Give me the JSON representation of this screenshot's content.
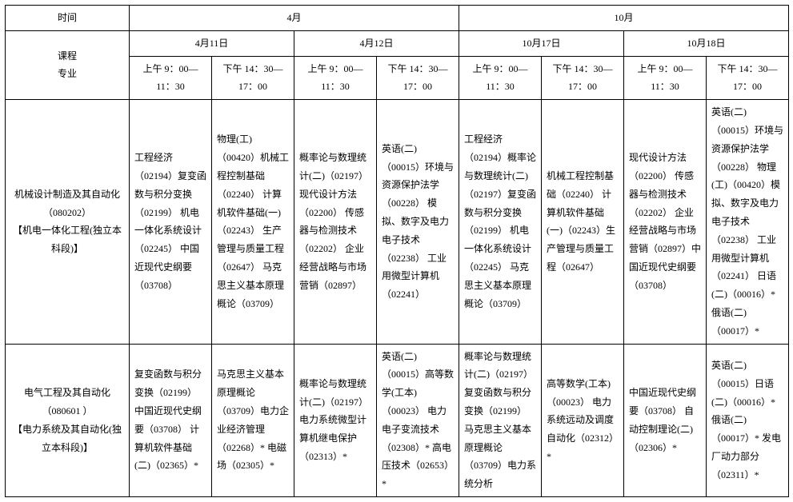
{
  "header": {
    "time_label": "时间",
    "course_major_label": "课程\n专业",
    "month_april": "4月",
    "month_october": "10月",
    "apr_11": "4月11日",
    "apr_12": "4月12日",
    "oct_17": "10月17日",
    "oct_18": "10月18日",
    "am": "上午 9：00—11：30",
    "pm": "下午 14：30—17：00",
    "am_wrap": "上午 9：00—11：30",
    "pm_wrap": "下午 14：30—17：00"
  },
  "rows": [
    {
      "label": "机械设计制造及其自动化（080202）\n【机电一体化工程(独立本科段)】",
      "cells": [
        "工程经济（02194）复变函数与积分变换（02199）  机电一体化系统设计（02245）  中国近现代史纲要（03708）",
        "物理(工)（00420）机械工程控制基础（02240）    计算机软件基础(一)（02243）   生产管理与质量工程（02647）  马克思主义基本原理概论（03709）",
        "概率论与数理统计(二)（02197）  现代设计方法（02200）     传感器与检测技术（02202）  企业经营战略与市场营销（02897）",
        "英语(二)（00015）环境与资源保护法学（00228）  模拟、数字及电力电子技术（02238）    工业用微型计算机（02241）",
        "工程经济（02194）概率论与数理统计(二)（02197）复变函数与积分变换（02199）  机电一体化系统设计（02245）  马克思主义基本原理概论（03709）",
        "机械工程控制基础（02240）    计算机软件基础(一)（02243）生产管理与质量工程（02647）",
        "现代设计方法（02200）     传感器与检测技术（02202）  企业经营战略与市场营销（02897）中国近现代史纲要（03708）",
        "英语(二)（00015）环境与资源保护法学（00228）  物理(工)（00420）模拟、数字及电力电子技术（02238）    工业用微型计算机（02241）    日语(二)（00016）*           俄语(二)（00017）*"
      ]
    },
    {
      "label": "电气工程及其自动化（080601 ）\n【电力系统及其自动化(独立本科段)】",
      "cells": [
        "复变函数与积分变换（02199）  中国近现代史纲要（03708）  计算机软件基础(二)（02365）*",
        "马克思主义基本原理概论（03709）电力企业经济管理（02268）*     电磁场（02305）*",
        "概率论与数理统计(二)（02197）  电力系统微型计算机继电保护（02313）*",
        "英语(二)（00015）高等数学(工本)（00023）     电力电子变流技术（02308）*  高电压技术（02653）*",
        "概率论与数理统计(二)（02197）  复变函数与积分变换（02199）  马克思主义基本原理概论（03709）电力系统分析",
        "高等数学(工本)（00023）     电力系统远动及调度自动化（02312）*",
        "中国近现代史纲要（03708）  自动控制理论(二)（02306）*",
        "英语(二)（00015）日语(二)（00016）*           俄语(二)（00017）*           发电厂动力部分（02311）*"
      ]
    }
  ]
}
